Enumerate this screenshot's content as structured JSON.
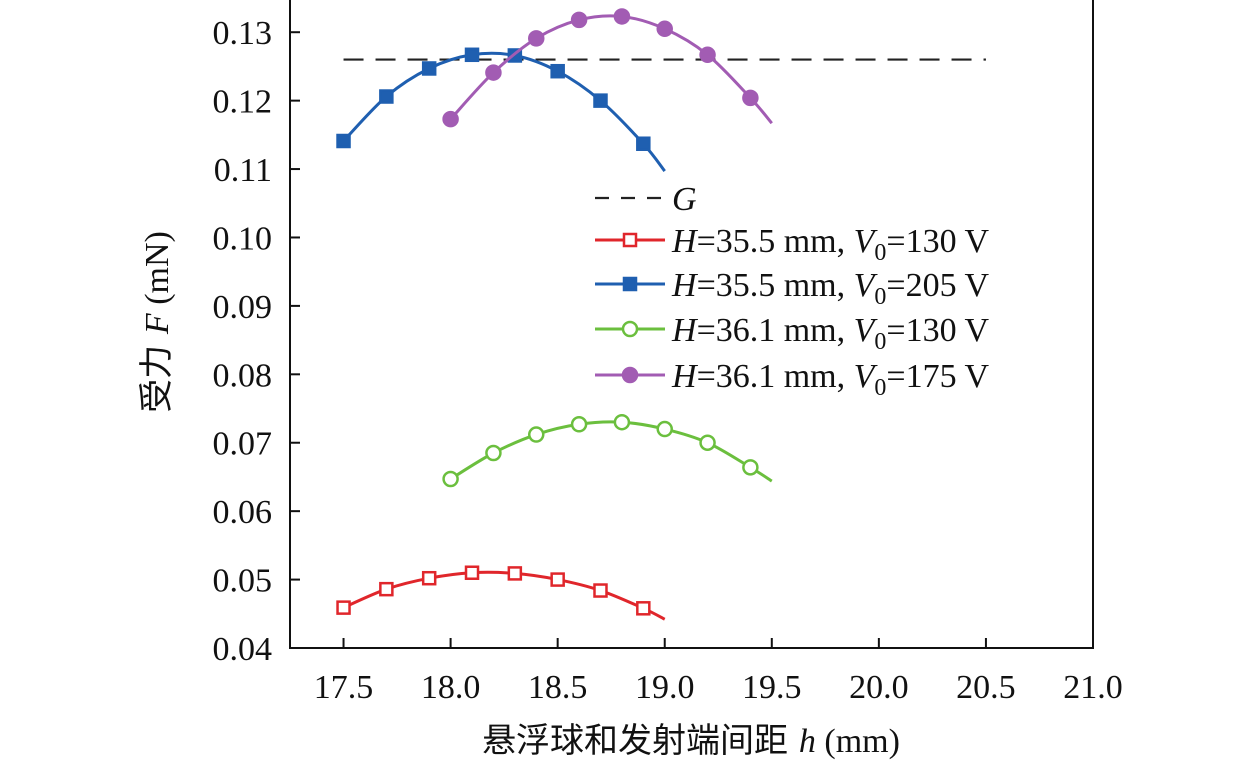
{
  "chart_data": {
    "type": "line",
    "xlabel_prefix": "悬浮球和发射端间距 ",
    "xlabel_var": "h",
    "xlabel_unit": " (mm)",
    "ylabel_prefix": "受力 ",
    "ylabel_var": "F",
    "ylabel_unit": " (mN)",
    "xlim": [
      17.25,
      21.0
    ],
    "ylim": [
      0.04,
      0.135
    ],
    "xticks": [
      17.5,
      18.0,
      18.5,
      19.0,
      19.5,
      20.0,
      20.5,
      21.0
    ],
    "xtick_labels": [
      "17.5",
      "18.0",
      "18.5",
      "19.0",
      "19.5",
      "20.0",
      "20.5",
      "21.0"
    ],
    "yticks": [
      0.04,
      0.05,
      0.06,
      0.07,
      0.08,
      0.09,
      0.1,
      0.11,
      0.12,
      0.13
    ],
    "ytick_labels": [
      "0.04",
      "0.05",
      "0.06",
      "0.07",
      "0.08",
      "0.09",
      "0.10",
      "0.11",
      "0.12",
      "0.13"
    ],
    "grid": false,
    "legend_position": "center-right",
    "reference_line": {
      "label": "G",
      "y": 0.126,
      "x_range": [
        17.5,
        20.5
      ],
      "color": "#222222",
      "style": "dashed"
    },
    "series": [
      {
        "legend": {
          "p1": "H",
          "p2": "=35.5 mm, ",
          "p3": "V",
          "p4": "0",
          "p5": "=130 V"
        },
        "color": "#e0262b",
        "marker": "square-open",
        "x": [
          17.5,
          17.7,
          17.9,
          18.1,
          18.3,
          18.5,
          18.7,
          18.9
        ],
        "y": [
          0.0459,
          0.0486,
          0.0502,
          0.051,
          0.0509,
          0.05,
          0.0484,
          0.0458
        ],
        "curve_end": [
          19.0,
          0.0442
        ]
      },
      {
        "legend": {
          "p1": "H",
          "p2": "=35.5 mm, ",
          "p3": "V",
          "p4": "0",
          "p5": "=205 V"
        },
        "color": "#1f5fb0",
        "marker": "square-filled",
        "x": [
          17.5,
          17.7,
          17.9,
          18.1,
          18.3,
          18.5,
          18.7,
          18.9
        ],
        "y": [
          0.1141,
          0.1206,
          0.1247,
          0.1267,
          0.1266,
          0.1243,
          0.12,
          0.1137
        ],
        "curve_end": [
          19.0,
          0.1097
        ]
      },
      {
        "legend": {
          "p1": "H",
          "p2": "=36.1 mm, ",
          "p3": "V",
          "p4": "0",
          "p5": "=130 V"
        },
        "color": "#6bbf3e",
        "marker": "circle-open",
        "x": [
          18.0,
          18.2,
          18.4,
          18.6,
          18.8,
          19.0,
          19.2,
          19.4
        ],
        "y": [
          0.0647,
          0.0685,
          0.0712,
          0.0727,
          0.073,
          0.072,
          0.07,
          0.0664
        ],
        "curve_end": [
          19.5,
          0.0644
        ]
      },
      {
        "legend": {
          "p1": "H",
          "p2": "=36.1 mm, ",
          "p3": "V",
          "p4": "0",
          "p5": "=175 V"
        },
        "color": "#a25cb3",
        "marker": "circle-filled",
        "x": [
          18.0,
          18.2,
          18.4,
          18.6,
          18.8,
          19.0,
          19.2,
          19.4
        ],
        "y": [
          0.1173,
          0.1241,
          0.1291,
          0.1318,
          0.1323,
          0.1305,
          0.1267,
          0.1204
        ],
        "curve_end": [
          19.5,
          0.1167
        ]
      }
    ]
  }
}
